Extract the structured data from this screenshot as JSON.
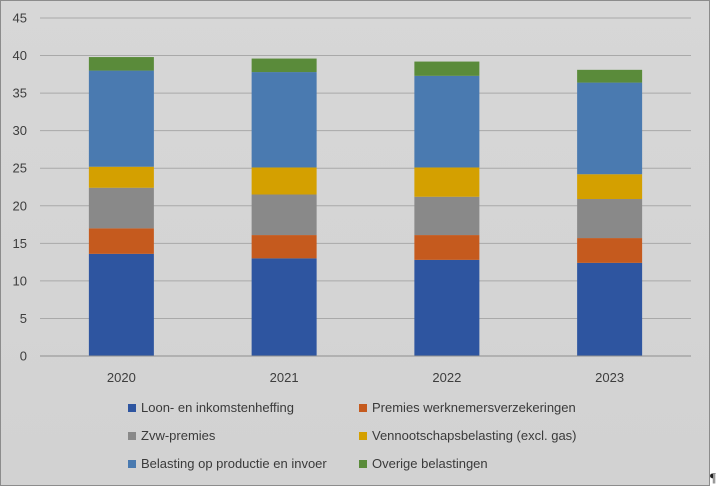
{
  "chart_data": {
    "type": "bar",
    "stacked": true,
    "categories": [
      "2020",
      "2021",
      "2022",
      "2023"
    ],
    "series": [
      {
        "name": "Loon- en inkomstenheffing",
        "color": "#2e55a0",
        "values": [
          13.6,
          13.0,
          12.8,
          12.4
        ]
      },
      {
        "name": "Premies werknemersverzekeringen",
        "color": "#c55a1e",
        "values": [
          3.4,
          3.1,
          3.3,
          3.3
        ]
      },
      {
        "name": "Zvw-premies",
        "color": "#898989",
        "values": [
          5.4,
          5.4,
          5.1,
          5.2
        ]
      },
      {
        "name": "Vennootschapsbelasting (excl. gas)",
        "color": "#d4a000",
        "values": [
          2.8,
          3.6,
          3.9,
          3.3
        ]
      },
      {
        "name": "Belasting op productie en invoer",
        "color": "#4a7ab0",
        "values": [
          12.8,
          12.7,
          12.2,
          12.2
        ]
      },
      {
        "name": "Overige belastingen",
        "color": "#5a8b3a",
        "values": [
          1.8,
          1.8,
          1.9,
          1.7
        ]
      }
    ],
    "ylim": [
      0,
      45
    ],
    "yticks": [
      0,
      5,
      10,
      15,
      20,
      25,
      30,
      35,
      40,
      45
    ],
    "grid": true,
    "legend_position": "bottom",
    "title": "",
    "xlabel": "",
    "ylabel": ""
  },
  "pilcrow": "¶"
}
